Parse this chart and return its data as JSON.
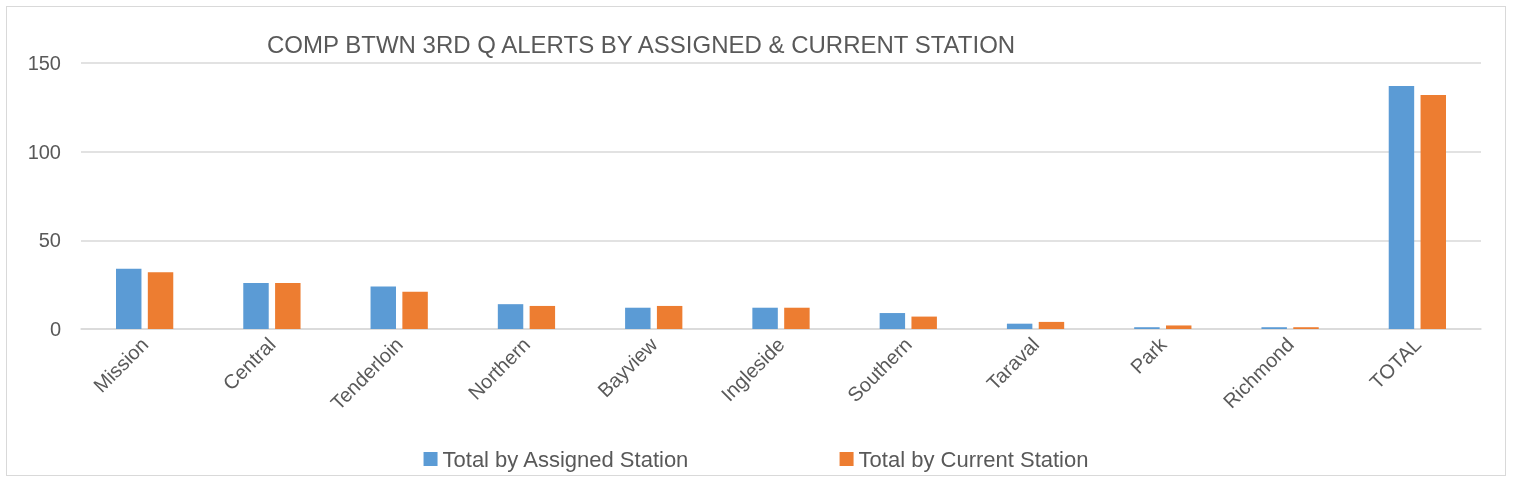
{
  "chart_data": {
    "type": "bar",
    "title": "COMP BTWN 3RD Q ALERTS BY ASSIGNED & CURRENT STATION",
    "categories": [
      "Mission",
      "Central",
      "Tenderloin",
      "Northern",
      "Bayview",
      "Ingleside",
      "Southern",
      "Taraval",
      "Park",
      "Richmond",
      "TOTAL"
    ],
    "series": [
      {
        "name": "Total by Assigned Station",
        "color": "#5b9bd5",
        "values": [
          34,
          26,
          24,
          14,
          12,
          12,
          9,
          3,
          1,
          1,
          137
        ]
      },
      {
        "name": "Total by Current Station",
        "color": "#ed7d31",
        "values": [
          32,
          26,
          21,
          13,
          13,
          12,
          7,
          4,
          2,
          1,
          132
        ]
      }
    ],
    "ylim": [
      0,
      150
    ],
    "yticks": [
      0,
      50,
      100,
      150
    ],
    "grid": "y",
    "legend": "bottom"
  }
}
